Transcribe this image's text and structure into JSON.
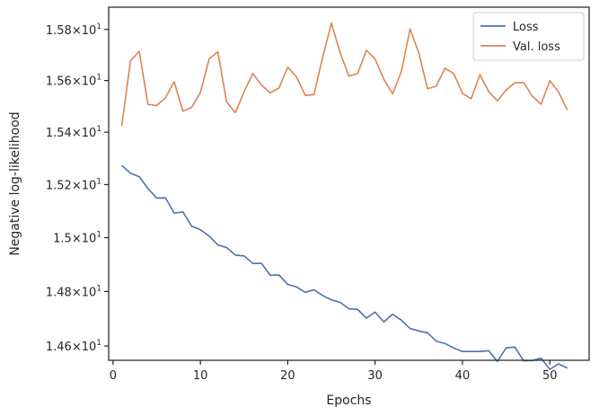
{
  "chart_data": {
    "type": "line",
    "xlabel": "Epochs",
    "ylabel": "Negative log-likelihood",
    "xlim": [
      -0.5,
      54.5
    ],
    "ylim": [
      14.548,
      15.888
    ],
    "y_scale": "log",
    "grid": false,
    "legend_position": "top-right",
    "x_ticks": [
      {
        "value": 0,
        "label": "0"
      },
      {
        "value": 10,
        "label": "10"
      },
      {
        "value": 20,
        "label": "20"
      },
      {
        "value": 30,
        "label": "30"
      },
      {
        "value": 40,
        "label": "40"
      },
      {
        "value": 50,
        "label": "50"
      }
    ],
    "y_ticks": [
      {
        "value": 14.6,
        "base": "1.46",
        "exp": "1"
      },
      {
        "value": 14.8,
        "base": "1.48",
        "exp": "1"
      },
      {
        "value": 15.0,
        "base": "1.5",
        "exp": "1"
      },
      {
        "value": 15.2,
        "base": "1.52",
        "exp": "1"
      },
      {
        "value": 15.4,
        "base": "1.54",
        "exp": "1"
      },
      {
        "value": 15.6,
        "base": "1.56",
        "exp": "1"
      },
      {
        "value": 15.8,
        "base": "1.58",
        "exp": "1"
      }
    ],
    "y_tick_times": "×",
    "y_tick_mantissa_base": "10",
    "x": [
      1,
      2,
      3,
      4,
      5,
      6,
      7,
      8,
      9,
      10,
      11,
      12,
      13,
      14,
      15,
      16,
      17,
      18,
      19,
      20,
      21,
      22,
      23,
      24,
      25,
      26,
      27,
      28,
      29,
      30,
      31,
      32,
      33,
      34,
      35,
      36,
      37,
      38,
      39,
      40,
      41,
      42,
      43,
      44,
      45,
      46,
      47,
      48,
      49,
      50,
      51,
      52
    ],
    "series": [
      {
        "name": "Loss",
        "color": "#4c72b0",
        "values": [
          15.273,
          15.243,
          15.23,
          15.185,
          15.149,
          15.15,
          15.092,
          15.097,
          15.043,
          15.03,
          15.006,
          14.973,
          14.963,
          14.935,
          14.932,
          14.904,
          14.904,
          14.86,
          14.861,
          14.826,
          14.817,
          14.797,
          14.806,
          14.785,
          14.769,
          14.76,
          14.736,
          14.734,
          14.702,
          14.724,
          14.688,
          14.716,
          14.695,
          14.664,
          14.655,
          14.648,
          14.618,
          14.609,
          14.593,
          14.58,
          14.58,
          14.58,
          14.583,
          14.544,
          14.593,
          14.596,
          14.546,
          14.547,
          14.556,
          14.515,
          14.535,
          14.52
        ]
      },
      {
        "name": "Val. loss",
        "color": "#dd8452",
        "values": [
          15.424,
          15.677,
          15.714,
          15.507,
          15.503,
          15.533,
          15.595,
          15.481,
          15.496,
          15.553,
          15.684,
          15.712,
          15.517,
          15.475,
          15.556,
          15.627,
          15.582,
          15.552,
          15.571,
          15.652,
          15.614,
          15.542,
          15.545,
          15.691,
          15.825,
          15.708,
          15.617,
          15.627,
          15.718,
          15.684,
          15.605,
          15.548,
          15.634,
          15.802,
          15.708,
          15.568,
          15.578,
          15.648,
          15.627,
          15.55,
          15.529,
          15.623,
          15.557,
          15.521,
          15.563,
          15.591,
          15.592,
          15.539,
          15.508,
          15.599,
          15.555,
          15.486
        ]
      }
    ]
  }
}
